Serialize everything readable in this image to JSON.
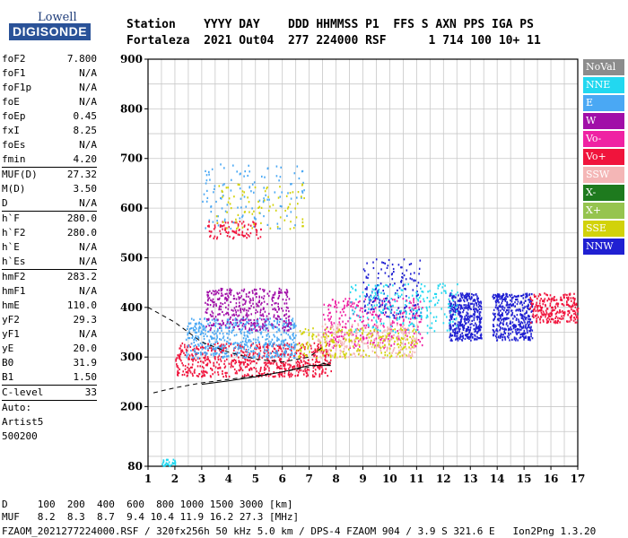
{
  "logo": {
    "line1": "Lowell",
    "line2": "DIGISONDE"
  },
  "header": {
    "line1": "Station    YYYY DAY    DDD HHMMSS P1  FFS S AXN PPS IGA PS",
    "line2": "Fortaleza  2021 Out04  277 224000 RSF      1 714 100 10+ 11"
  },
  "params": [
    {
      "k": "foF2",
      "v": "7.800"
    },
    {
      "k": "foF1",
      "v": "N/A"
    },
    {
      "k": "foF1p",
      "v": "N/A"
    },
    {
      "k": "foE",
      "v": "N/A"
    },
    {
      "k": "foEp",
      "v": "0.45"
    },
    {
      "k": "fxI",
      "v": "8.25"
    },
    {
      "k": "foEs",
      "v": "N/A"
    },
    {
      "k": "fmin",
      "v": "4.20"
    },
    {
      "k": "MUF(D)",
      "v": "27.32",
      "sep": true
    },
    {
      "k": "M(D)",
      "v": "3.50"
    },
    {
      "k": "D",
      "v": "N/A"
    },
    {
      "k": "h`F",
      "v": "280.0",
      "sep": true
    },
    {
      "k": "h`F2",
      "v": "280.0"
    },
    {
      "k": "h`E",
      "v": "N/A"
    },
    {
      "k": "h`Es",
      "v": "N/A"
    },
    {
      "k": "hmF2",
      "v": "283.2",
      "sep": true
    },
    {
      "k": "hmF1",
      "v": "N/A"
    },
    {
      "k": "hmE",
      "v": "110.0"
    },
    {
      "k": "yF2",
      "v": "29.3"
    },
    {
      "k": "yF1",
      "v": "N/A"
    },
    {
      "k": "yE",
      "v": "20.0"
    },
    {
      "k": "B0",
      "v": "31.9"
    },
    {
      "k": "B1",
      "v": "1.50"
    },
    {
      "k": "C-level",
      "v": "33",
      "sep": true
    },
    {
      "k": "Auto:",
      "v": "",
      "sep": true
    },
    {
      "k": "Artist5",
      "v": ""
    },
    {
      "k": "500200",
      "v": ""
    }
  ],
  "legend": [
    {
      "label": "NoVal",
      "color": "#8c8c8c"
    },
    {
      "label": "NNE",
      "color": "#22d8f0"
    },
    {
      "label": "E",
      "color": "#4aa8f4"
    },
    {
      "label": "W",
      "color": "#a10ea8"
    },
    {
      "label": "Vo-",
      "color": "#ef22a3"
    },
    {
      "label": "Vo+",
      "color": "#f0143c"
    },
    {
      "label": "SSW",
      "color": "#f4b6b6"
    },
    {
      "label": "X-",
      "color": "#1e7a1e"
    },
    {
      "label": "X+",
      "color": "#96c44f"
    },
    {
      "label": "SSE",
      "color": "#d2d20a"
    },
    {
      "label": "NNW",
      "color": "#2020d2"
    }
  ],
  "footer": {
    "line1": "D     100  200  400  600  800 1000 1500 3000 [km]",
    "line2": "MUF   8.2  8.3  8.7  9.4 10.4 11.9 16.2 27.3 [MHz]",
    "line3": "FZAOM_2021277224000.RSF / 320fx256h 50 kHz 5.0 km / DPS-4 FZAOM 904 / 3.9 S 321.6 E   Ion2Png 1.3.20"
  },
  "chart_data": {
    "type": "scatter",
    "xlabel": "",
    "ylabel": "",
    "xlim": [
      1,
      17
    ],
    "ylim": [
      80,
      900
    ],
    "x_ticks": [
      1,
      2,
      3,
      4,
      5,
      6,
      7,
      8,
      9,
      10,
      11,
      12,
      13,
      14,
      15,
      16,
      17
    ],
    "y_ticks": [
      80,
      200,
      300,
      400,
      500,
      600,
      700,
      800,
      900
    ],
    "grid": true,
    "clusters": [
      {
        "name": "F2 trace (Vo+)",
        "color": "#f0143c",
        "x": [
          2.0,
          7.8
        ],
        "y": [
          262,
          330
        ],
        "n": 700
      },
      {
        "name": "E echoes",
        "color": "#4aa8f4",
        "x": [
          2.4,
          6.5
        ],
        "y": [
          300,
          380
        ],
        "n": 550
      },
      {
        "name": "W scatter",
        "color": "#a10ea8",
        "x": [
          3.1,
          6.3
        ],
        "y": [
          355,
          440
        ],
        "n": 380
      },
      {
        "name": "Vo- trace",
        "color": "#ef22a3",
        "x": [
          7.5,
          11.2
        ],
        "y": [
          320,
          420
        ],
        "n": 320
      },
      {
        "name": "SSW echoes",
        "color": "#f4b6b6",
        "x": [
          7.3,
          11.0
        ],
        "y": [
          300,
          370
        ],
        "n": 250
      },
      {
        "name": "SSE echoes",
        "color": "#d2d20a",
        "x": [
          6.5,
          11.0
        ],
        "y": [
          300,
          360
        ],
        "n": 220
      },
      {
        "name": "NNW cluster A",
        "color": "#2020d2",
        "x": [
          12.2,
          13.4
        ],
        "y": [
          335,
          430
        ],
        "n": 420
      },
      {
        "name": "NNW cluster B",
        "color": "#2020d2",
        "x": [
          13.8,
          15.3
        ],
        "y": [
          335,
          430
        ],
        "n": 420
      },
      {
        "name": "NNW upper",
        "color": "#2020d2",
        "x": [
          9.0,
          11.2
        ],
        "y": [
          380,
          500
        ],
        "n": 160
      },
      {
        "name": "Vo+ high",
        "color": "#f0143c",
        "x": [
          15.2,
          17.0
        ],
        "y": [
          370,
          430
        ],
        "n": 260
      },
      {
        "name": "NNE mixed",
        "color": "#22d8f0",
        "x": [
          8.5,
          12.5
        ],
        "y": [
          350,
          450
        ],
        "n": 220
      },
      {
        "name": "Oblique high E",
        "color": "#4aa8f4",
        "x": [
          3.0,
          6.8
        ],
        "y": [
          560,
          690
        ],
        "n": 120
      },
      {
        "name": "Oblique high Vo+",
        "color": "#f0143c",
        "x": [
          3.2,
          5.2
        ],
        "y": [
          540,
          575
        ],
        "n": 90
      },
      {
        "name": "Oblique high SSE",
        "color": "#d2d20a",
        "x": [
          3.5,
          6.8
        ],
        "y": [
          560,
          650
        ],
        "n": 80
      },
      {
        "name": "Low echo",
        "color": "#22d8f0",
        "x": [
          1.5,
          2.0
        ],
        "y": [
          82,
          96
        ],
        "n": 30
      }
    ],
    "curves": [
      {
        "name": "model dashed",
        "style": "dashed",
        "x": [
          1,
          2,
          3,
          4,
          5,
          6,
          7,
          7.5
        ],
        "y": [
          400,
          370,
          330,
          310,
          296,
          290,
          300,
          320
        ]
      },
      {
        "name": "model lower dashed",
        "style": "dashed",
        "x": [
          1.2,
          2,
          3,
          4,
          5,
          6,
          7,
          7.8
        ],
        "y": [
          228,
          238,
          248,
          255,
          262,
          270,
          280,
          290
        ]
      },
      {
        "name": "true height",
        "style": "solid",
        "x": [
          3,
          4,
          5,
          6,
          7,
          7.8,
          7.5
        ],
        "y": [
          245,
          252,
          260,
          270,
          283,
          283,
          288
        ]
      }
    ]
  }
}
